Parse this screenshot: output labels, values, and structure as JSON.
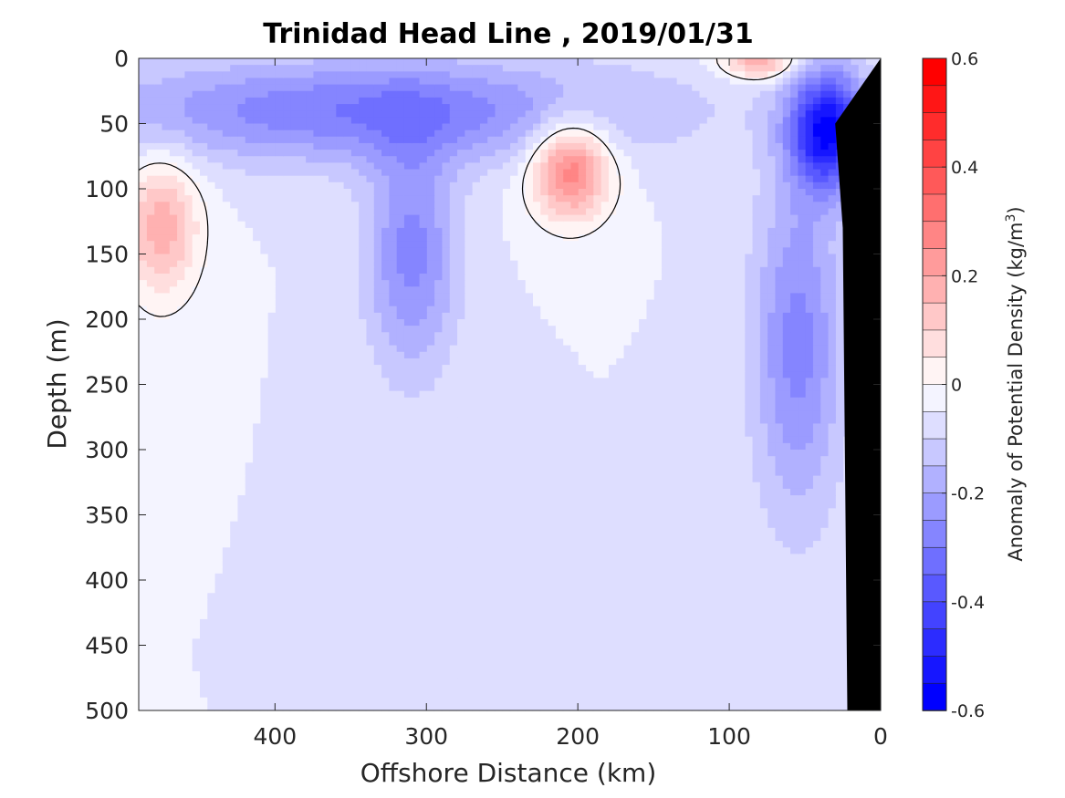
{
  "chart_data": {
    "type": "heatmap",
    "title": "Trinidad Head Line , 2019/01/31",
    "xlabel": "Offshore Distance (km)",
    "ylabel": "Depth (m)",
    "colorbar_label": "Anomaly of Potential Density (kg/m",
    "colorbar_label_sup": "3",
    "colorbar_label_close": ")",
    "xlim": [
      490,
      0
    ],
    "ylim": [
      500,
      0
    ],
    "x_ticks": [
      400,
      300,
      200,
      100,
      0
    ],
    "y_ticks": [
      0,
      50,
      100,
      150,
      200,
      250,
      300,
      350,
      400,
      450,
      500
    ],
    "colorbar_ticks": [
      0.6,
      0.4,
      0.2,
      0,
      -0.2,
      -0.4,
      -0.6
    ],
    "colorbar_ticklabels": [
      "0.6",
      "0.4",
      "0.2",
      "0",
      "-0.2",
      "-0.4",
      "-0.6"
    ],
    "clim": [
      -0.6,
      0.6
    ],
    "contour_levels": 24,
    "zero_contour": true,
    "background_anomaly": -0.05,
    "features": [
      {
        "name": "surface negative layer",
        "x": 340,
        "z": 40,
        "sx": 180,
        "sz": 40,
        "amp": -0.25
      },
      {
        "name": "near-shore negative core",
        "x": 35,
        "z": 55,
        "sx": 25,
        "sz": 45,
        "amp": -0.5
      },
      {
        "name": "coastal negative tongue",
        "x": 55,
        "z": 220,
        "sx": 30,
        "sz": 130,
        "amp": -0.22
      },
      {
        "name": "mid-section negative tongue",
        "x": 310,
        "z": 150,
        "sx": 30,
        "sz": 90,
        "amp": -0.22
      },
      {
        "name": "central positive eddy",
        "x": 205,
        "z": 85,
        "sx": 26,
        "sz": 38,
        "amp": 0.35
      },
      {
        "name": "western positive patch",
        "x": 475,
        "z": 130,
        "sx": 25,
        "sz": 55,
        "amp": 0.23
      },
      {
        "name": "surface positive patch",
        "x": 80,
        "z": 2,
        "sx": 25,
        "sz": 14,
        "amp": 0.25
      }
    ],
    "bathymetry": [
      [
        22,
        500
      ],
      [
        25,
        130
      ],
      [
        30,
        50
      ],
      [
        0,
        0
      ]
    ]
  }
}
